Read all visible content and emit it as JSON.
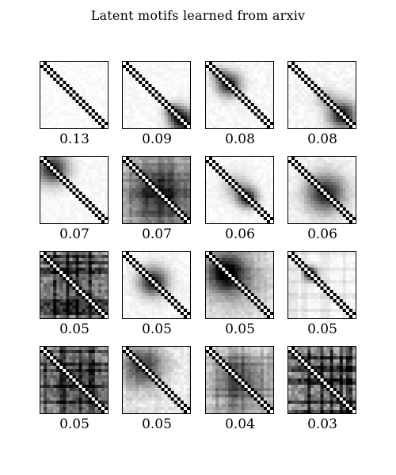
{
  "title": "Latent motifs learned from arxiv",
  "chart_data": {
    "type": "heatmap",
    "title": "Latent motifs learned from arxiv",
    "colormap": [
      "#ffffff",
      "#000000"
    ],
    "matrix_size": 21,
    "layout": {
      "rows": 4,
      "cols": 4
    },
    "motifs": [
      {
        "weight": "0.13",
        "blobs": [],
        "noise": 0.04,
        "stripes": 0
      },
      {
        "weight": "0.09",
        "blobs": [
          {
            "c": 0.88,
            "r": 0.13,
            "a": 0.95
          },
          {
            "c": 0.74,
            "r": 0.08,
            "a": 0.45
          }
        ],
        "noise": 0.05,
        "stripes": 0
      },
      {
        "weight": "0.08",
        "blobs": [
          {
            "c": 0.34,
            "r": 0.12,
            "a": 0.9
          },
          {
            "c": 0.18,
            "r": 0.08,
            "a": 0.35
          }
        ],
        "noise": 0.06,
        "stripes": 0
      },
      {
        "weight": "0.08",
        "blobs": [
          {
            "c": 0.8,
            "r": 0.14,
            "a": 0.9
          },
          {
            "c": 0.55,
            "r": 0.1,
            "a": 0.3
          }
        ],
        "noise": 0.07,
        "stripes": 0
      },
      {
        "weight": "0.07",
        "blobs": [
          {
            "c": 0.18,
            "r": 0.16,
            "a": 0.85
          }
        ],
        "noise": 0.05,
        "stripes": 0
      },
      {
        "weight": "0.07",
        "blobs": [
          {
            "c": 0.55,
            "r": 0.38,
            "a": 0.75
          }
        ],
        "noise": 0.12,
        "stripes": 0.1
      },
      {
        "weight": "0.06",
        "blobs": [
          {
            "c": 0.62,
            "r": 0.1,
            "a": 0.9
          },
          {
            "c": 0.45,
            "r": 0.14,
            "a": 0.3
          }
        ],
        "noise": 0.05,
        "stripes": 0
      },
      {
        "weight": "0.06",
        "blobs": [
          {
            "c": 0.55,
            "r": 0.2,
            "a": 0.85
          }
        ],
        "noise": 0.07,
        "stripes": 0
      },
      {
        "weight": "0.05",
        "blobs": [
          {
            "c": 0.5,
            "r": 0.6,
            "a": 0.45
          }
        ],
        "noise": 0.3,
        "stripes": 0.35
      },
      {
        "weight": "0.05",
        "blobs": [
          {
            "c": 0.45,
            "r": 0.15,
            "a": 0.85
          }
        ],
        "noise": 0.06,
        "stripes": 0
      },
      {
        "weight": "0.05",
        "blobs": [
          {
            "c": 0.3,
            "r": 0.2,
            "a": 0.8
          },
          {
            "c": 0.45,
            "r": 0.35,
            "a": 0.3
          }
        ],
        "noise": 0.1,
        "stripes": 0.05
      },
      {
        "weight": "0.05",
        "blobs": [
          {
            "c": 0.33,
            "r": 0.07,
            "a": 0.95
          }
        ],
        "noise": 0.05,
        "stripes": 0.08
      },
      {
        "weight": "0.05",
        "blobs": [
          {
            "c": 0.55,
            "r": 0.55,
            "a": 0.55
          }
        ],
        "noise": 0.25,
        "stripes": 0.3
      },
      {
        "weight": "0.05",
        "blobs": [
          {
            "c": 0.3,
            "r": 0.22,
            "a": 0.7
          }
        ],
        "noise": 0.12,
        "stripes": 0.05
      },
      {
        "weight": "0.04",
        "blobs": [
          {
            "c": 0.5,
            "r": 0.3,
            "a": 0.6
          }
        ],
        "noise": 0.12,
        "stripes": 0.15
      },
      {
        "weight": "0.03",
        "blobs": [
          {
            "c": 0.5,
            "r": 0.6,
            "a": 0.35
          }
        ],
        "noise": 0.3,
        "stripes": 0.45
      }
    ]
  }
}
